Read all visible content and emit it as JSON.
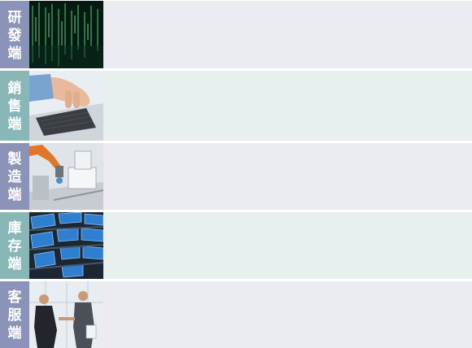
{
  "rows": [
    {
      "label": [
        "研",
        "發",
        "端"
      ],
      "label_color": "#8c93b8",
      "content_color": "#ebebf2"
    },
    {
      "label": [
        "銷",
        "售",
        "端"
      ],
      "label_color": "#89b7b7",
      "content_color": "#e7efef"
    },
    {
      "label": [
        "製",
        "造",
        "端"
      ],
      "label_color": "#8c93b8",
      "content_color": "#ebebf2"
    },
    {
      "label": [
        "庫",
        "存",
        "端"
      ],
      "label_color": "#89b7b7",
      "content_color": "#e7efef"
    },
    {
      "label": [
        "客",
        "服",
        "端"
      ],
      "label_color": "#8c93b8",
      "content_color": "#ebebf2"
    }
  ]
}
